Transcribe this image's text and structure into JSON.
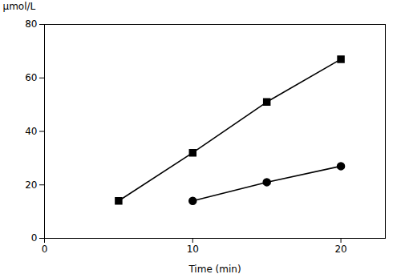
{
  "chart_data": {
    "type": "line",
    "xlabel": "Time (min)",
    "ylabel": "μmol/L",
    "xlim": [
      0,
      23
    ],
    "ylim": [
      0,
      80
    ],
    "xticks": [
      0,
      10,
      20
    ],
    "yticks": [
      0,
      20,
      40,
      60,
      80
    ],
    "grid": false,
    "series": [
      {
        "color": "#000000",
        "marker": "square",
        "x": [
          5,
          10,
          15,
          20
        ],
        "values": [
          14,
          32,
          51,
          67
        ]
      },
      {
        "color": "#000000",
        "marker": "circle",
        "x": [
          10,
          15,
          20
        ],
        "values": [
          14,
          21,
          27
        ]
      }
    ]
  }
}
